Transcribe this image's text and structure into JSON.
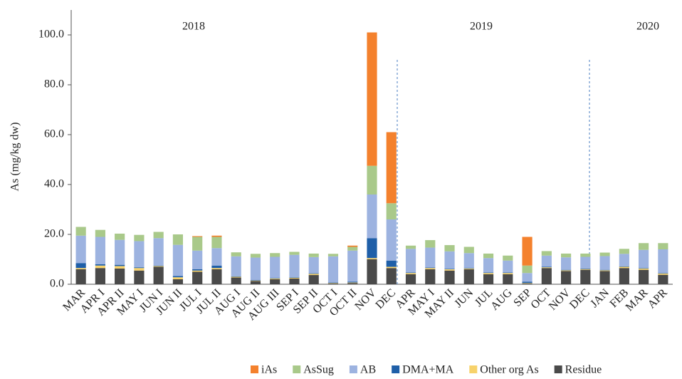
{
  "chart_data": {
    "type": "stacked_bar",
    "y_label": "As (mg/kg dw)",
    "annotations": [
      "2018",
      "2019",
      "2020"
    ],
    "categories": [
      "MAR",
      "APR I",
      "APR II",
      "MAY I",
      "JUN I",
      "JUN II",
      "JUL I",
      "JUL II",
      "AUG I",
      "AUG II",
      "AUG III",
      "SEP I",
      "SEP II",
      "OCT I",
      "OCT II",
      "NOV",
      "DEC",
      "APR",
      "MAY I",
      "MAY II",
      "JUN",
      "JUL",
      "AUG",
      "SEP",
      "OCT",
      "NOV",
      "DEC",
      "JAN",
      "FEB",
      "MAR",
      "APR"
    ],
    "series": [
      {
        "name": "iAs",
        "color": "#f4812d",
        "values": [
          0,
          0,
          0,
          0,
          0,
          0,
          0.3,
          0.5,
          0,
          0,
          0,
          0,
          0,
          0,
          0.5,
          53.5,
          28.5,
          0,
          0,
          0,
          0,
          0,
          0,
          11.5,
          0,
          0,
          0,
          0,
          0,
          0,
          0
        ]
      },
      {
        "name": "AsSug",
        "color": "#a9c98a",
        "values": [
          3.5,
          2.8,
          2.5,
          2.5,
          2.5,
          4.2,
          5.5,
          4.5,
          1.6,
          1.5,
          1.5,
          1.2,
          1.4,
          1,
          1.5,
          11.5,
          6.5,
          1.3,
          3,
          2.5,
          2.5,
          1.8,
          2,
          3,
          1.8,
          1.5,
          1.3,
          1.4,
          2,
          2.7,
          2.5
        ]
      },
      {
        "name": "AB",
        "color": "#9db3e0",
        "values": [
          11,
          11,
          10,
          10.5,
          11,
          12.5,
          7.5,
          7,
          8,
          9,
          8.5,
          9,
          6.5,
          10.5,
          12.5,
          17.5,
          16.5,
          9.5,
          8,
          7,
          6,
          5.8,
          4.8,
          3.5,
          4.5,
          5,
          4.7,
          5.5,
          5,
          7.3,
          9.5
        ]
      },
      {
        "name": "DMA+MA",
        "color": "#1f5fa8",
        "values": [
          2,
          0.5,
          0.5,
          0.3,
          0.2,
          0.5,
          0.5,
          1,
          0.2,
          0.2,
          0.2,
          0.2,
          0.2,
          0.2,
          0.3,
          8,
          2.5,
          0.2,
          0.2,
          0.2,
          0.2,
          0.2,
          0.2,
          0.5,
          0.2,
          0.2,
          0.2,
          0.2,
          0.2,
          0.2,
          0.2
        ]
      },
      {
        "name": "Other org As",
        "color": "#f7d26b",
        "values": [
          0.5,
          1,
          1,
          1,
          0.3,
          0.8,
          0.5,
          0.5,
          0.3,
          0.2,
          0.3,
          0.3,
          0.5,
          0.2,
          0.2,
          0.5,
          0.5,
          0.5,
          0.5,
          0.5,
          0.3,
          0.5,
          0.5,
          0.2,
          0.3,
          0.3,
          0.3,
          0.3,
          0.5,
          0.5,
          0.5
        ]
      },
      {
        "name": "Residue",
        "color": "#4a4a4a",
        "values": [
          6,
          6.5,
          6.3,
          5.5,
          7,
          2,
          5,
          6,
          2.7,
          1.3,
          2,
          2.3,
          3.7,
          0.3,
          0.5,
          10,
          6.5,
          4,
          6,
          5.5,
          6,
          4,
          4,
          0.3,
          6.5,
          5.3,
          5.8,
          5.3,
          6.5,
          5.8,
          3.8
        ]
      }
    ],
    "ylim": [
      0,
      110
    ],
    "yticks": [
      {
        "value": 0,
        "label": "0.0"
      },
      {
        "value": 20,
        "label": "20.0"
      },
      {
        "value": 40,
        "label": "40.0"
      },
      {
        "value": 60,
        "label": "60.0"
      },
      {
        "value": 80,
        "label": "80.0"
      },
      {
        "value": 100,
        "label": "100.0"
      }
    ],
    "grid": false,
    "legend": "bottom-right"
  }
}
